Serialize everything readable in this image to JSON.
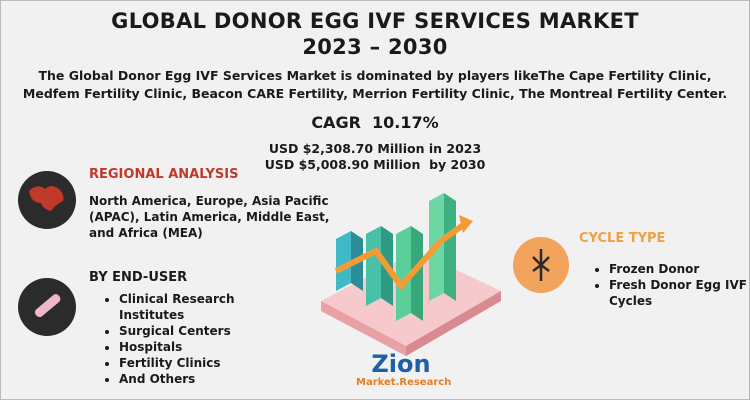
{
  "header": {
    "title_line1": "GLOBAL DONOR EGG IVF SERVICES MARKET",
    "title_line2": "2023 – 2030",
    "description": "The Global Donor Egg IVF Services Market is dominated by players likeThe Cape Fertility Clinic, Medfem Fertility Clinic, Beacon CARE Fertility, Merrion Fertility Clinic, The Montreal Fertility Center."
  },
  "highlights": {
    "cagr_label": "CAGR",
    "cagr_value": "10.17%",
    "value_2023": "USD $2,308.70 Million in 2023",
    "value_2030": "USD $5,008.90 Million  by 2030"
  },
  "regional": {
    "heading": "REGIONAL ANALYSIS",
    "text": "North America, Europe, Asia Pacific (APAC), Latin America, Middle East, and Africa (MEA)"
  },
  "end_user": {
    "heading": "BY END-USER",
    "items": [
      "Clinical Research Institutes",
      "Surgical Centers",
      "Hospitals",
      "Fertility Clinics",
      "And Others"
    ]
  },
  "cycle_type": {
    "heading": "CYCLE TYPE",
    "items": [
      "Frozen Donor",
      "Fresh Donor Egg IVF Cycles"
    ]
  },
  "logo": {
    "name": "Zion",
    "tagline": "Market.Research"
  }
}
